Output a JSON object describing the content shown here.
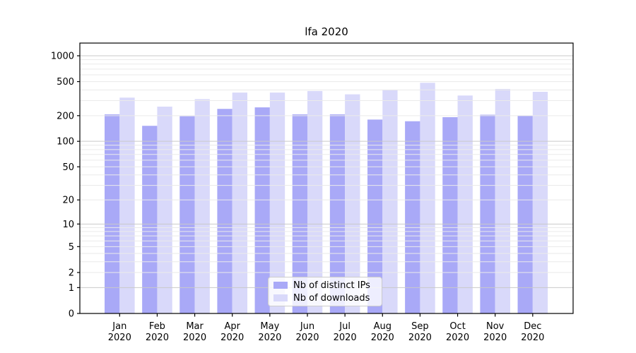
{
  "chart_data": {
    "type": "bar",
    "title": "lfa 2020",
    "categories": [
      "Jan 2020",
      "Feb 2020",
      "Mar 2020",
      "Apr 2020",
      "May 2020",
      "Jun 2020",
      "Jul 2020",
      "Aug 2020",
      "Sep 2020",
      "Oct 2020",
      "Nov 2020",
      "Dec 2020"
    ],
    "series": [
      {
        "name": "Nb of distinct IPs",
        "color": "#a9a9f7",
        "values": [
          207,
          152,
          197,
          240,
          250,
          207,
          207,
          180,
          172,
          192,
          205,
          200
        ]
      },
      {
        "name": "Nb of downloads",
        "color": "#d9d9fa",
        "values": [
          325,
          255,
          312,
          372,
          372,
          388,
          355,
          400,
          484,
          344,
          410,
          380
        ]
      }
    ],
    "y_axis": {
      "scale": "log1p",
      "tick_values": [
        1000,
        500,
        200,
        100,
        50,
        20,
        10,
        5,
        2,
        1,
        0
      ],
      "tick_labels": [
        "1000",
        "500",
        "200",
        "100",
        "50",
        "20",
        "10",
        "5",
        "2",
        "1",
        "0"
      ],
      "major_gridlines": [
        1,
        10,
        100,
        1000
      ],
      "minor_gridlines": [
        2,
        3,
        4,
        5,
        6,
        7,
        8,
        9,
        20,
        30,
        40,
        50,
        60,
        70,
        80,
        90,
        200,
        300,
        400,
        500,
        600,
        700,
        800,
        900
      ],
      "ylim": [
        0,
        1400
      ]
    },
    "x_axis": {
      "year_line": "2020"
    },
    "grid": true,
    "legend_position": "lower center",
    "colors": {
      "major_grid": "#c9c9c9",
      "minor_grid": "#eaeaea",
      "axis": "#000000",
      "text": "#000000",
      "background": "#ffffff"
    }
  }
}
